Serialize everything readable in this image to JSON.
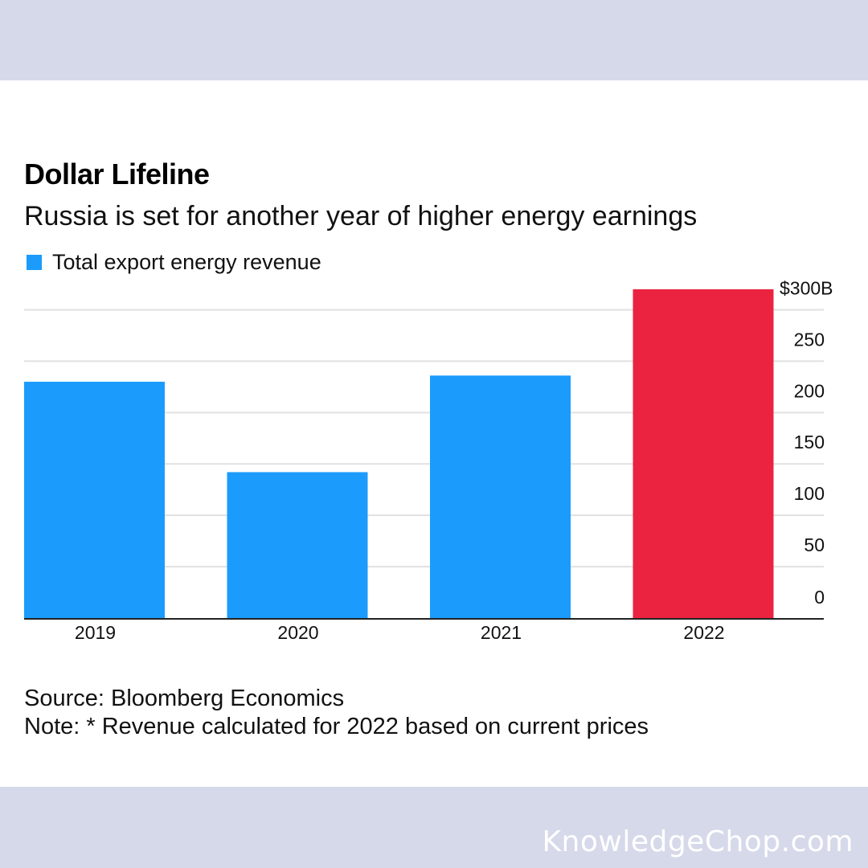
{
  "colors": {
    "frame": "#d6d9ea",
    "series": "#1b9cfc",
    "highlight": "#eb2340",
    "gridline": "#e1e1e1",
    "axis": "#222222",
    "watermark": "#ffffff"
  },
  "watermark": "KnowledgeChop.com",
  "chart_data": {
    "type": "bar",
    "title": "Dollar Lifeline",
    "subtitle": "Russia is set for another year of higher energy earnings",
    "categories": [
      "2019",
      "2020",
      "2021",
      "2022"
    ],
    "series": [
      {
        "name": "Total export energy revenue",
        "values": [
          230,
          142,
          236,
          320
        ]
      }
    ],
    "highlight_category": "2022",
    "ylim": [
      0,
      320
    ],
    "yticks": [
      0,
      50,
      100,
      150,
      200,
      250,
      300
    ],
    "ytick_labels": [
      "0",
      "50",
      "100",
      "150",
      "200",
      "250",
      "$300B"
    ],
    "y_axis_position": "right",
    "grid": true,
    "legend": "top-left"
  },
  "footer": {
    "source": "Source: Bloomberg Economics",
    "note": "Note: * Revenue calculated for 2022 based on current prices"
  }
}
